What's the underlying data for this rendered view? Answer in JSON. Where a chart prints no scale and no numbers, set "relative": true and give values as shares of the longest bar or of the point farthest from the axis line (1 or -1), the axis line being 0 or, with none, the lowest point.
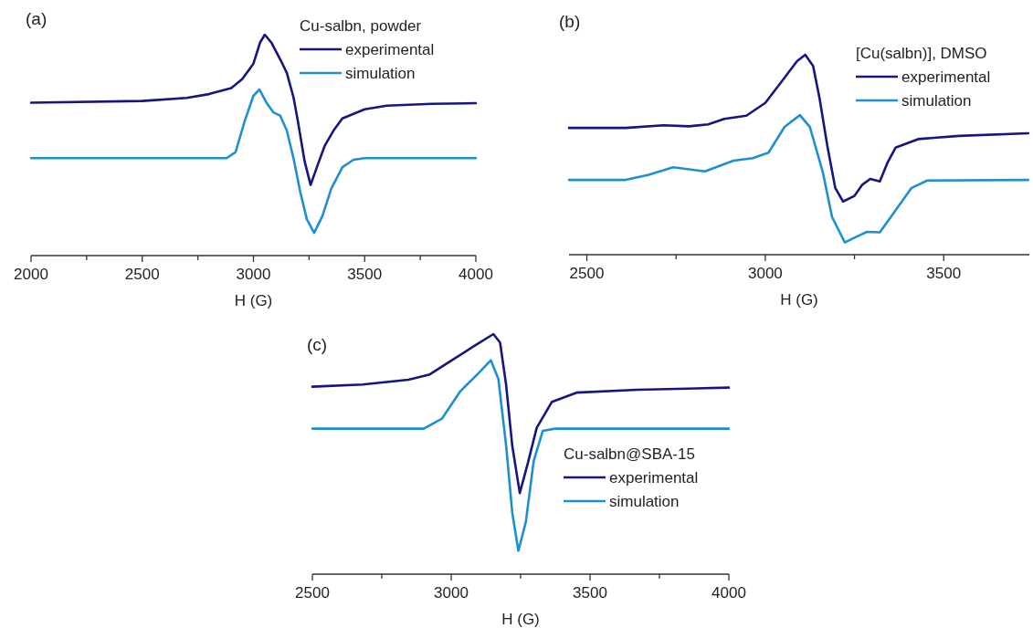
{
  "chart_data": [
    {
      "type": "line",
      "title": "(a)",
      "xlabel": "H (G)",
      "legend_title": "Cu-salbn, powder",
      "legend": "top right",
      "relative": true,
      "xlim": [
        2000,
        4000
      ],
      "xticks": [
        2000,
        {
          "value": 2250,
          "label": null
        },
        2500,
        {
          "value": 2750,
          "label": null
        },
        3000,
        {
          "value": 3250,
          "label": null
        },
        3500,
        {
          "value": 3750,
          "label": null
        },
        4000
      ],
      "series": [
        {
          "name": "experimental",
          "color": "#16167e",
          "x": [
            2000,
            2500,
            2700,
            2800,
            2900,
            2950,
            3000,
            3030,
            3051,
            3080,
            3130,
            3150,
            3180,
            3200,
            3230,
            3257,
            3290,
            3320,
            3360,
            3400,
            3500,
            3600,
            3800,
            4000
          ],
          "values": [
            0.692,
            0.7,
            0.714,
            0.731,
            0.758,
            0.8,
            0.869,
            0.965,
            1.0,
            0.965,
            0.869,
            0.827,
            0.717,
            0.607,
            0.427,
            0.32,
            0.414,
            0.496,
            0.566,
            0.621,
            0.662,
            0.679,
            0.687,
            0.69
          ]
        },
        {
          "name": "simulation",
          "color": "#1f8fcf",
          "x": [
            2000,
            2880,
            2920,
            2960,
            3000,
            3027,
            3060,
            3090,
            3120,
            3150,
            3180,
            3210,
            3240,
            3273,
            3310,
            3350,
            3400,
            3450,
            3500,
            4000
          ],
          "values": [
            0.441,
            0.441,
            0.469,
            0.607,
            0.724,
            0.752,
            0.69,
            0.648,
            0.634,
            0.566,
            0.441,
            0.29,
            0.165,
            0.103,
            0.179,
            0.303,
            0.4,
            0.434,
            0.441,
            0.441
          ]
        }
      ]
    },
    {
      "type": "line",
      "title": "(b)",
      "xlabel": "H (G)",
      "legend_title": "[Cu(salbn)], DMSO",
      "legend": "top right",
      "relative": true,
      "xlim": [
        2450,
        3740
      ],
      "xticks": [
        2500,
        {
          "value": 2750,
          "label": null
        },
        3000,
        {
          "value": 3250,
          "label": null
        },
        3500
      ],
      "series": [
        {
          "name": "experimental",
          "color": "#16167e",
          "x": [
            2450,
            2609,
            2715,
            2787,
            2840,
            2885,
            2947,
            3000,
            3045,
            3089,
            3112,
            3134,
            3152,
            3174,
            3196,
            3218,
            3250,
            3272,
            3294,
            3321,
            3343,
            3365,
            3428,
            3543,
            3737
          ],
          "values": [
            0.634,
            0.634,
            0.647,
            0.642,
            0.652,
            0.679,
            0.695,
            0.759,
            0.864,
            0.968,
            1.0,
            0.944,
            0.783,
            0.543,
            0.334,
            0.266,
            0.294,
            0.35,
            0.379,
            0.366,
            0.462,
            0.535,
            0.578,
            0.594,
            0.607
          ]
        },
        {
          "name": "simulation",
          "color": "#1f8fcf",
          "x": [
            2450,
            2609,
            2671,
            2742,
            2831,
            2911,
            2965,
            3009,
            3054,
            3097,
            3125,
            3161,
            3187,
            3223,
            3250,
            3285,
            3321,
            3365,
            3410,
            3454,
            3737
          ],
          "values": [
            0.374,
            0.374,
            0.398,
            0.437,
            0.417,
            0.47,
            0.483,
            0.51,
            0.639,
            0.698,
            0.639,
            0.414,
            0.189,
            0.061,
            0.085,
            0.114,
            0.112,
            0.222,
            0.334,
            0.371,
            0.374
          ]
        }
      ]
    },
    {
      "type": "line",
      "title": "(c)",
      "xlabel": "H (G)",
      "legend_title": "Cu-salbn@SBA-15",
      "legend": "right",
      "relative": true,
      "xlim": [
        2500,
        4000
      ],
      "xticks": [
        2500,
        {
          "value": 2750,
          "label": null
        },
        3000,
        {
          "value": 3250,
          "label": null
        },
        3500,
        {
          "value": 3750,
          "label": null
        },
        4000
      ],
      "series": [
        {
          "name": "experimental",
          "color": "#16167e",
          "x": [
            2500,
            2681,
            2846,
            2923,
            3000,
            3077,
            3152,
            3176,
            3198,
            3220,
            3247,
            3275,
            3308,
            3363,
            3451,
            3670,
            4000
          ],
          "values": [
            0.781,
            0.79,
            0.81,
            0.832,
            0.889,
            0.946,
            1.0,
            0.965,
            0.787,
            0.534,
            0.338,
            0.458,
            0.61,
            0.718,
            0.756,
            0.768,
            0.777
          ]
        },
        {
          "name": "simulation",
          "color": "#1f8fcf",
          "x": [
            2500,
            2901,
            2967,
            3033,
            3099,
            3143,
            3170,
            3198,
            3220,
            3242,
            3269,
            3297,
            3330,
            3374,
            4000
          ],
          "values": [
            0.606,
            0.606,
            0.648,
            0.762,
            0.838,
            0.891,
            0.813,
            0.534,
            0.256,
            0.097,
            0.218,
            0.471,
            0.597,
            0.606,
            0.606
          ]
        }
      ]
    }
  ]
}
